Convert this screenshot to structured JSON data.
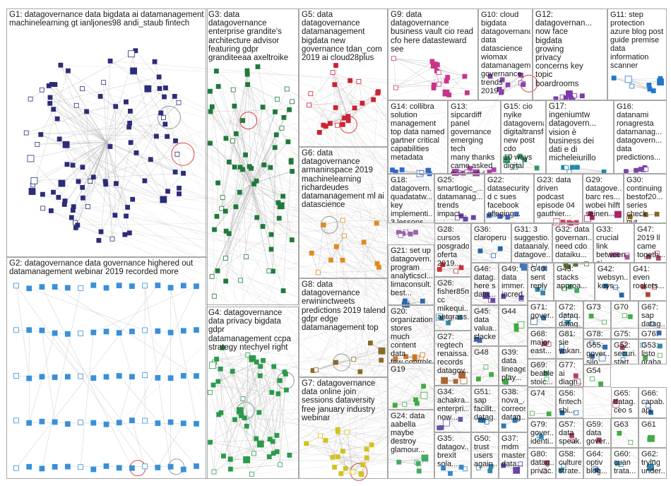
{
  "title": "",
  "colors": {
    "edge": "#b4b4b4",
    "self_loop": "#dd4444",
    "border": "#a8a8a8"
  },
  "groups": [
    {
      "id": "G1",
      "label": "G1: datagovernance data bigdata ai datamanagement\nmachinelearning gt ianljones98 andi_staub fintech",
      "nodes": 95,
      "color": "#2c2c7a"
    },
    {
      "id": "G2",
      "label": "G2: datagovernance data governance highered out\ndatamanagement webinar 2019 recorded more",
      "nodes": 75,
      "color": "#3a8fd9"
    },
    {
      "id": "G3",
      "label": "G3: data\ndatagovernance\nenterprise grandite's\narchitecture advisor\nfeaturing gdpr\ngranditeeaa axeltroike",
      "nodes": 70,
      "color": "#1f7a3a"
    },
    {
      "id": "G4",
      "label": "G4: datagovernance\ndata privacy bigdata gdpr\ndatamanagement ccpa\nstrategy ntechyel right",
      "nodes": 50,
      "color": "#2a9a4a"
    },
    {
      "id": "G5",
      "label": "G5: data\ndatagovernance\ndatamanagement\nbigdata new\ngovernance tdan_com\n2019 ai cloud28plus",
      "nodes": 22,
      "color": "#cc2233"
    },
    {
      "id": "G6",
      "label": "G6: data\ndatagovernance\narmaninspace 2019\nmachinelearning\nrichardeudes\ndatamanagement ml ai\ndatascience",
      "nodes": 12,
      "color": "#e08a1e"
    },
    {
      "id": "G7",
      "label": "G7: datagovernance\ndata online join\nsessions dataversity\nfree january industry\nwebinar",
      "nodes": 20,
      "color": "#d4c21a"
    },
    {
      "id": "G8",
      "label": "G8: data\ndatagovernance\nerwininctweets\npredictions 2019 talend\ngdpr edge\ndatamanagement top",
      "nodes": 8,
      "color": "#8a6a2a"
    },
    {
      "id": "G9",
      "label": "G9: data\ndatagovernance\nbusiness vault cio read\ncfo here datasteward\nsee",
      "nodes": 16,
      "color": "#cc3388"
    },
    {
      "id": "G10",
      "label": "G10: cloud bigdata\ndatagovernance\ndata datascience\nwiomax\ndatamanagement\ngovernance trends\n2019",
      "nodes": 10,
      "color": "#8844aa"
    },
    {
      "id": "G11",
      "label": "G11: step\nprotection\nazure blog post\nguide premise\ndata\ninformation\nscanner",
      "nodes": 8,
      "color": "#2277cc"
    },
    {
      "id": "G12",
      "label": "G12:\ndatagovernan...\nnow face\nbigdata\ngrowing\nprivacy\nconcerns key\ntopic\nboardrooms",
      "nodes": 8,
      "color": "#7a3aaa"
    },
    {
      "id": "G13",
      "label": "G13: sipcardiff\npanel\ngovernance\nemerging tech\nmany thanks\ncame asked\nthoughtful",
      "nodes": 8,
      "color": "#aa44aa"
    },
    {
      "id": "G14",
      "label": "G14: collibra\nsolution\nmanagement\ntop data named\ngartner critical\ncapabilities\nmetadata",
      "nodes": 8,
      "color": "#3366cc"
    },
    {
      "id": "G15",
      "label": "G15: cio nyike\ndatagoverna...\ndigitaltransfor...\nnew post cdo\n10 ways digital",
      "nodes": 6,
      "color": "#339966"
    },
    {
      "id": "G16",
      "label": "G16:\ndatanami\nronagresta\ndatamanag...\ndatagovern...\ndata\npredictions...",
      "nodes": 6,
      "color": "#7a44aa"
    },
    {
      "id": "G17",
      "label": "G17:\ningeniumtw\ndatagovern...\nvision è\nbusiness dei\ndati e di\nmicheleiurillo",
      "nodes": 6,
      "color": "#2288aa"
    },
    {
      "id": "G18",
      "label": "G18:\ndatagovern...\nquadatatw...\nkey\nimplementi...\n3 lessons\nlearned...",
      "nodes": 6,
      "color": "#9966aa"
    },
    {
      "id": "G19",
      "label": "G19",
      "nodes": 6,
      "color": "#44aa44"
    },
    {
      "id": "G20",
      "label": "G20:\norganization\nstores much\ncontent data\nfew controls\nbecomes...",
      "nodes": 6,
      "color": "#cc7722"
    },
    {
      "id": "G21",
      "label": "G21: set up\ndatagovern...\nprogram\nanalyticscl...\nlimaconsult...\nbest...",
      "nodes": 5,
      "color": "#3366aa"
    },
    {
      "id": "G22",
      "label": "G22:\ndatasecurity\nd c sues\nfacebook\nalleging...",
      "nodes": 5,
      "color": "#4466cc"
    },
    {
      "id": "G23",
      "label": "G23: data\ndriven\npodcast\nepisode 04\ngauthier...",
      "nodes": 5,
      "color": "#cc4466"
    },
    {
      "id": "G24",
      "label": "G24: data\naabella\nmaybe\ndestroy\nglamour...",
      "nodes": 5,
      "color": "#44aa66"
    },
    {
      "id": "G25",
      "label": "G25:\nsmartlogic_...\ndatamanag...\ntrends\nimpact...",
      "nodes": 4,
      "color": "#6644aa"
    },
    {
      "id": "G26",
      "label": "G26:\nfisher85m\ncc\nmikequi...\nantgrass...",
      "nodes": 4,
      "color": "#3388aa"
    },
    {
      "id": "G27",
      "label": "G27:\nregtech\nrenaissa...\nrecords\ndatagov...",
      "nodes": 4,
      "color": "#aa6633"
    },
    {
      "id": "G28",
      "label": "G28:\ncursos\nposgrado\noferta\n2019...",
      "nodes": 4,
      "color": "#cc3333"
    },
    {
      "id": "G29",
      "label": "G29:\ndatagove...\nbarc res...\nwobei hilft\nseinen...",
      "nodes": 4,
      "color": "#aa2266"
    },
    {
      "id": "G30",
      "label": "G30:\ncontinuing\nbestof20...\nseries\ncheck out...",
      "nodes": 4,
      "color": "#886622"
    },
    {
      "id": "G31",
      "label": "G31: 3\nsuggestio...\ndataanaly...\ndatagove...",
      "nodes": 4,
      "color": "#4477bb"
    },
    {
      "id": "G32",
      "label": "G32: data\ngovernan...\nneed cdo\ndataiku...",
      "nodes": 4,
      "color": "#557733"
    },
    {
      "id": "G33",
      "label": "G33:\ncrucial link\nbetween ai\ngood...",
      "nodes": 4,
      "color": "#aa5599"
    },
    {
      "id": "G34",
      "label": "G34:\nachakra...\nenterpri...\nnow...",
      "nodes": 4,
      "color": "#6655aa"
    },
    {
      "id": "G35",
      "label": "G35:\ndatagov...\nbrexit\nsola...",
      "nodes": 4,
      "color": "#3388cc"
    },
    {
      "id": "G36",
      "label": "G36:\nclaroperu",
      "nodes": 3,
      "color": "#2266aa"
    },
    {
      "id": "G37",
      "label": "G37:\nmdm\nmaster\ndata...",
      "nodes": 3,
      "color": "#6644aa"
    },
    {
      "id": "G38",
      "label": "G38:\nnova_...\ncorreos\ndatag...",
      "nodes": 3,
      "color": "#3377aa"
    },
    {
      "id": "G39",
      "label": "G39:\ndata\nlineage\nplay...",
      "nodes": 3,
      "color": "#44aa44"
    },
    {
      "id": "G40",
      "label": "G40:\nsent\nreply",
      "nodes": 3,
      "color": "#3388aa"
    },
    {
      "id": "G41",
      "label": "G41:\neven\nrockets...",
      "nodes": 3,
      "color": "#aa4444"
    },
    {
      "id": "G42",
      "label": "G42:\nwebsyn...\nkeys...",
      "nodes": 3,
      "color": "#2266aa"
    },
    {
      "id": "G43",
      "label": "G43:\nstacks\napproa...",
      "nodes": 3,
      "color": "#44aa66"
    },
    {
      "id": "G44",
      "label": "G44",
      "nodes": 3,
      "color": "#44aa44"
    },
    {
      "id": "G45",
      "label": "G45:\ndata\nvalua...\nslacke...",
      "nodes": 3,
      "color": "#4466aa"
    },
    {
      "id": "G46",
      "label": "G46:\ndatag...\nhere s\ndata...",
      "nodes": 3,
      "color": "#6644aa"
    },
    {
      "id": "G47",
      "label": "G47: 2019 ll\ncame\ntogeth...",
      "nodes": 3,
      "color": "#aa4466"
    },
    {
      "id": "G48",
      "label": "G48",
      "nodes": 3,
      "color": "#44aa44"
    },
    {
      "id": "G49",
      "label": "G49:\ndata\nimmer...\nincred...",
      "nodes": 3,
      "color": "#6644aa"
    },
    {
      "id": "G50",
      "label": "G50:\ntrust\nusers\nagain...",
      "nodes": 3,
      "color": "#3388aa"
    },
    {
      "id": "G51",
      "label": "G51:\nsap\nfacilit...\ndatag...",
      "nodes": 3,
      "color": "#2266aa"
    },
    {
      "id": "G52",
      "label": "G52:\nsecuri...\nstart...",
      "nodes": 2,
      "color": "#3388aa"
    },
    {
      "id": "G53",
      "label": "G53:\nlisto\ngraba...",
      "nodes": 2,
      "color": "#44aa44"
    },
    {
      "id": "G54",
      "label": "G54",
      "nodes": 2,
      "color": "#44aa44"
    },
    {
      "id": "G55",
      "label": "G55:\ngover...\nsilo",
      "nodes": 2,
      "color": "#3366aa"
    },
    {
      "id": "G56",
      "label": "G56:\nfintech\nsbi...",
      "nodes": 2,
      "color": "#2266aa"
    },
    {
      "id": "G57",
      "label": "G57:\ndata\nspeak...",
      "nodes": 2,
      "color": "#aa4466"
    },
    {
      "id": "G58",
      "label": "G58:\nculture\nstrate...",
      "nodes": 2,
      "color": "#3388aa"
    },
    {
      "id": "G59",
      "label": "G59:\ndata\ngover...",
      "nodes": 2,
      "color": "#aa4466"
    },
    {
      "id": "G60",
      "label": "G60:\ncuan\ntrata...",
      "nodes": 2,
      "color": "#3388aa"
    },
    {
      "id": "G61",
      "label": "G61",
      "nodes": 2,
      "color": "#44aa44"
    },
    {
      "id": "G62",
      "label": "G62:\ntrying\nunder...",
      "nodes": 2,
      "color": "#3388aa"
    },
    {
      "id": "G63",
      "label": "G63",
      "nodes": 2,
      "color": "#44aa44"
    },
    {
      "id": "G64",
      "label": "G64:\noptiv\nblog...",
      "nodes": 2,
      "color": "#3366aa"
    },
    {
      "id": "G65",
      "label": "G65:\ndatag...\nceo s",
      "nodes": 2,
      "color": "#aa4466"
    },
    {
      "id": "G66",
      "label": "G66:\ncapab...\napi",
      "nodes": 2,
      "color": "#2266aa"
    },
    {
      "id": "G67",
      "label": "G67:\nsap\ndatag...",
      "nodes": 2,
      "color": "#3366aa"
    },
    {
      "id": "G68",
      "label": "G68:\nmajor\neast...",
      "nodes": 2,
      "color": "#aa4466"
    },
    {
      "id": "G69",
      "label": "G69:\nbeable\nstoic...",
      "nodes": 2,
      "color": "#44aa66"
    },
    {
      "id": "G70",
      "label": "G70",
      "nodes": 2,
      "color": "#44aa44"
    },
    {
      "id": "G71",
      "label": "G71:\ngover...",
      "nodes": 2,
      "color": "#3366aa"
    },
    {
      "id": "G72",
      "label": "G72:\ndataq...\ndatag...",
      "nodes": 2,
      "color": "#3388aa"
    },
    {
      "id": "G73",
      "label": "G73",
      "nodes": 2,
      "color": "#44aa44"
    },
    {
      "id": "G74",
      "label": "G74",
      "nodes": 2,
      "color": "#44aa44"
    },
    {
      "id": "G75",
      "label": "G75:\n2019",
      "nodes": 2,
      "color": "#aa4466"
    },
    {
      "id": "G76",
      "label": "G76:\ndata\ntake...",
      "nodes": 2,
      "color": "#3388aa"
    },
    {
      "id": "G77",
      "label": "G77: ai\ndiagn...\nincre...",
      "nodes": 2,
      "color": "#aa4466"
    },
    {
      "id": "G78",
      "label": "G78:\nrule\nbarc...",
      "nodes": 2,
      "color": "#3366aa"
    },
    {
      "id": "G79",
      "label": "G79:\ngover...\nidenti...",
      "nodes": 2,
      "color": "#3388aa"
    },
    {
      "id": "G80",
      "label": "G80:\ndatag...\nprivac...",
      "nodes": 2,
      "color": "#aa4466"
    },
    {
      "id": "G81",
      "label": "G81:\nsie\nvakan...",
      "nodes": 2,
      "color": "#3366aa"
    }
  ]
}
